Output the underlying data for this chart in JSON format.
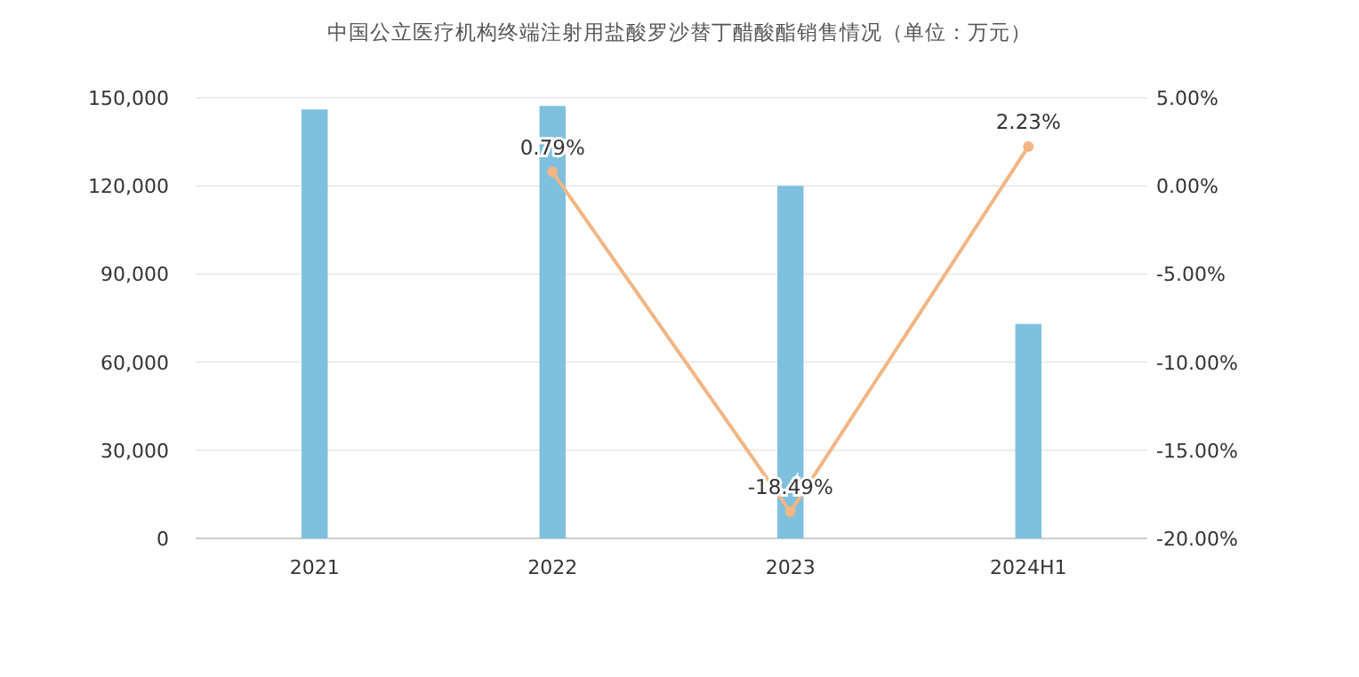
{
  "chart_data": {
    "type": "bar",
    "title": "中国公立医疗机构终端注射用盐酸罗沙替丁醋酸酯销售情况（单位：万元）",
    "categories": [
      "2021",
      "2022",
      "2023",
      "2024H1"
    ],
    "series": [
      {
        "color": "#7ec0dd",
        "values": [
          146000,
          147200,
          120000,
          73000
        ]
      },
      {
        "type": "line",
        "axis": "y2",
        "color": "#f2b583",
        "marker": "circle",
        "values": [
          null,
          0.79,
          -18.49,
          2.23
        ],
        "value_labels": [
          null,
          "0.79%",
          "-18.49%",
          "2.23%"
        ]
      }
    ],
    "ylim": [
      0,
      150000
    ],
    "yticks": [
      {
        "value": 0,
        "label": "0"
      },
      {
        "value": 30000,
        "label": "30,000"
      },
      {
        "value": 60000,
        "label": "60,000"
      },
      {
        "value": 90000,
        "label": "90,000"
      },
      {
        "value": 120000,
        "label": "120,000"
      },
      {
        "value": 150000,
        "label": "150,000"
      }
    ],
    "y2lim": [
      -20,
      5
    ],
    "y2ticks": [
      {
        "value": -20,
        "label": "-20.00%"
      },
      {
        "value": -15,
        "label": "-15.00%"
      },
      {
        "value": -10,
        "label": "-10.00%"
      },
      {
        "value": -5,
        "label": "-5.00%"
      },
      {
        "value": 0,
        "label": "0.00%"
      },
      {
        "value": 5,
        "label": "5.00%"
      }
    ],
    "grid": "y"
  }
}
